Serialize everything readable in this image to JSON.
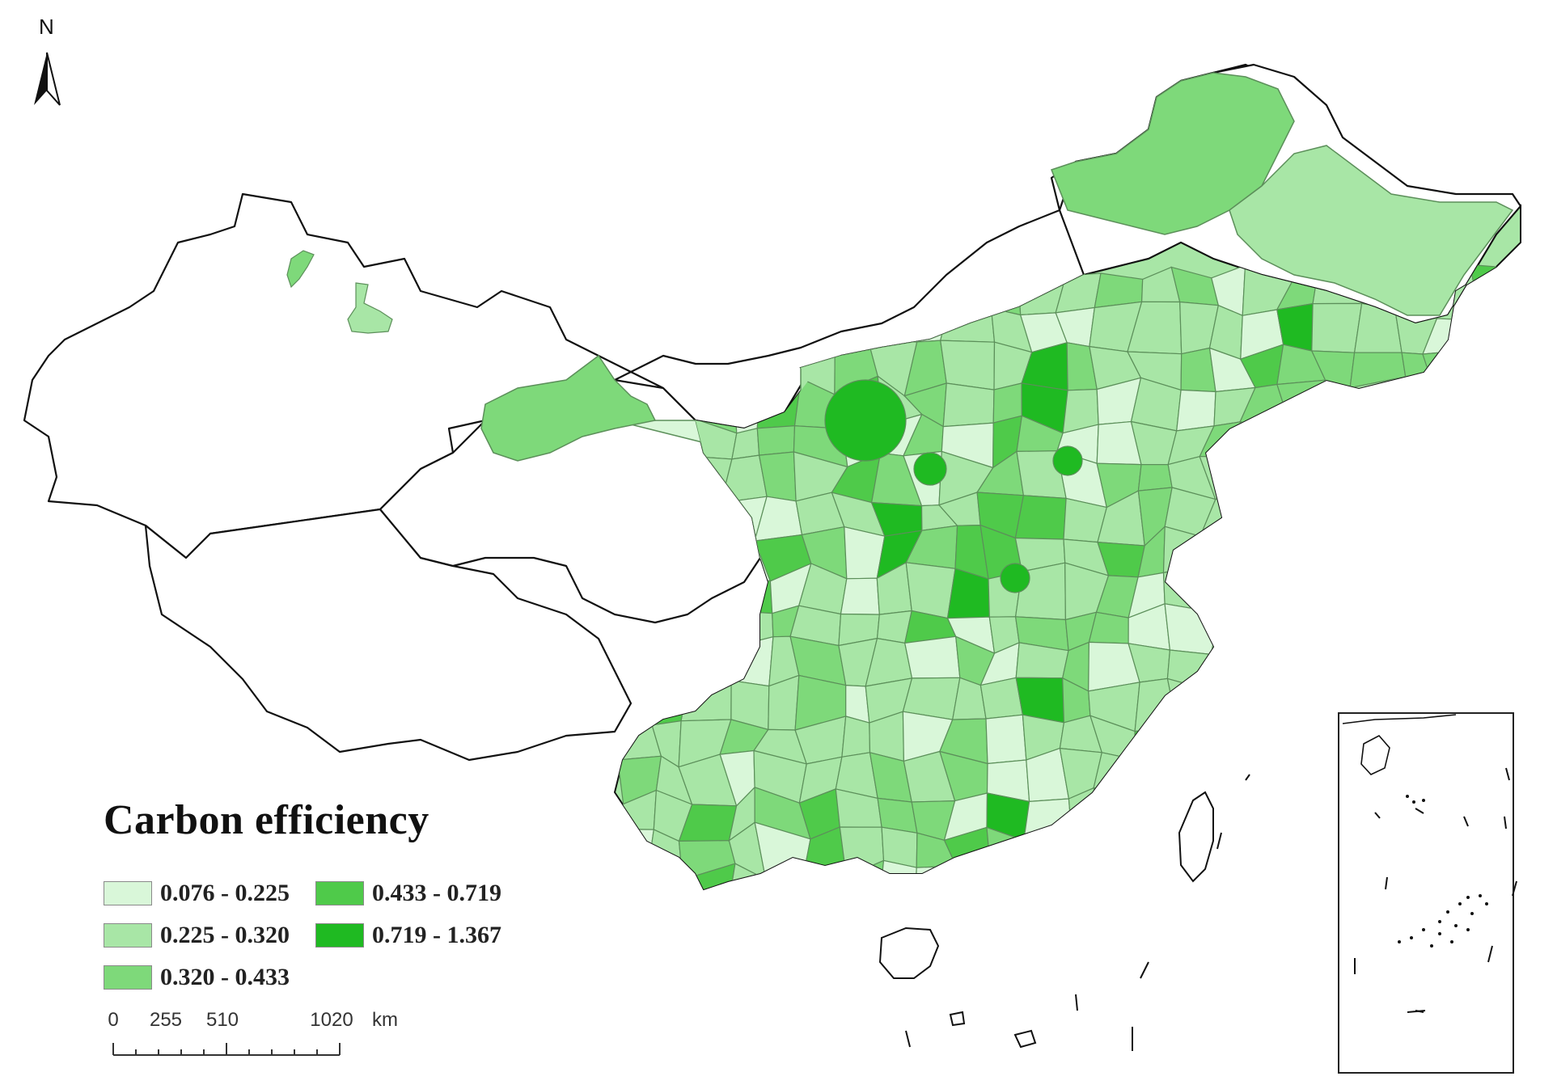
{
  "north_arrow": {
    "label": "N"
  },
  "legend": {
    "title": "Carbon efficiency",
    "classes": [
      {
        "label": "0.076 - 0.225",
        "color": "#d9f7d9"
      },
      {
        "label": "0.225 - 0.320",
        "color": "#a8e6a6"
      },
      {
        "label": "0.320 - 0.433",
        "color": "#7ed97a"
      },
      {
        "label": "0.433 - 0.719",
        "color": "#4fca4a"
      },
      {
        "label": "0.719 - 1.367",
        "color": "#1fba22"
      }
    ]
  },
  "scale_bar": {
    "labels": [
      "0",
      "255",
      "510",
      "1020"
    ],
    "unit": "km"
  },
  "map_style": {
    "no_data_color": "#ffffff",
    "boundary_color": "#111111",
    "city_border_color": "#5c8f5a"
  }
}
